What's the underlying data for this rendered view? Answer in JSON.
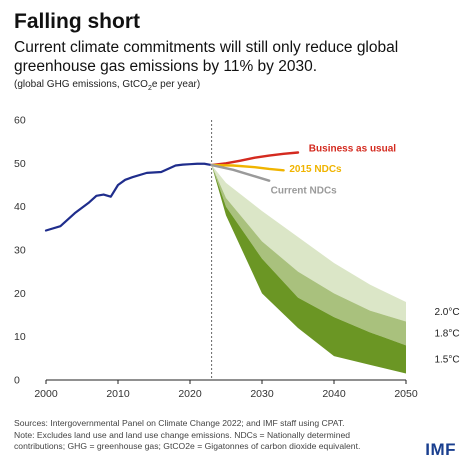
{
  "header": {
    "title": "Falling short",
    "subtitle": "Current climate commitments will still only reduce global greenhouse gas emissions by 11% by 2030.",
    "units_main": "(global GHG emissions, GtCO",
    "units_sub": "2",
    "units_tail": "e per year)"
  },
  "footer": {
    "line1": "Sources: Intergovernmental Panel on Climate Change 2022; and IMF staff using CPAT.",
    "line2": "Note: Excludes land use and land use change emissions. NDCs = Nationally determined",
    "line3": "contributions; GHG = greenhouse gas; GtCO2e = Gigatonnes of carbon dioxide equivalent."
  },
  "brand": "IMF",
  "colors": {
    "historical": "#1f2d8c",
    "business_as_usual": "#d42a1f",
    "ndc_2015": "#f0b400",
    "current_ndcs": "#9a9a9a",
    "band_2_0": "#dbe6c7",
    "band_1_8": "#a9c17d",
    "band_1_5": "#6b9624",
    "divider": "#666666"
  },
  "chart_data": {
    "type": "area",
    "xlim": [
      2000,
      2050
    ],
    "ylim": [
      0,
      60
    ],
    "x_ticks": [
      2000,
      2010,
      2020,
      2030,
      2040,
      2050
    ],
    "y_ticks": [
      0,
      10,
      20,
      30,
      40,
      50,
      60
    ],
    "grid": false,
    "divider_x": 2023,
    "series": [
      {
        "key": "historical",
        "x": [
          2000,
          2002,
          2004,
          2006,
          2007,
          2008,
          2009,
          2010,
          2011,
          2012,
          2014,
          2016,
          2018,
          2019,
          2020,
          2021,
          2022,
          2023
        ],
        "values": [
          34.5,
          35.5,
          38.5,
          41.0,
          42.5,
          42.8,
          42.3,
          45.0,
          46.2,
          46.8,
          47.8,
          48.0,
          49.5,
          49.7,
          49.8,
          49.9,
          49.9,
          49.6
        ]
      },
      {
        "key": "business_as_usual",
        "name": "Business as usual",
        "x": [
          2023,
          2025,
          2027,
          2029,
          2031,
          2033,
          2035
        ],
        "values": [
          49.6,
          50.0,
          50.6,
          51.3,
          51.8,
          52.2,
          52.5
        ]
      },
      {
        "key": "ndc_2015",
        "name": "2015 NDCs",
        "x": [
          2023,
          2026,
          2029,
          2031,
          2033
        ],
        "values": [
          49.6,
          49.5,
          49.1,
          48.7,
          48.4
        ]
      },
      {
        "key": "current_ndcs",
        "name": "Current NDCs",
        "x": [
          2023,
          2026,
          2029,
          2031
        ],
        "values": [
          49.6,
          48.5,
          47.0,
          46.0
        ]
      }
    ],
    "bands": [
      {
        "key": "band_2_0",
        "name": "2.0°C",
        "x": [
          2020,
          2023,
          2025,
          2030,
          2035,
          2040,
          2045,
          2050
        ],
        "upper": [
          49.8,
          49.6,
          45.5,
          39.0,
          33.0,
          27.0,
          22.0,
          18.0
        ],
        "lower": [
          49.8,
          49.6,
          42.0,
          32.0,
          25.0,
          20.0,
          16.0,
          13.5
        ]
      },
      {
        "key": "band_1_8",
        "name": "1.8°C",
        "x": [
          2020,
          2023,
          2025,
          2030,
          2035,
          2040,
          2045,
          2050
        ],
        "upper": [
          49.8,
          49.6,
          42.0,
          32.0,
          25.0,
          20.0,
          16.0,
          13.5
        ],
        "lower": [
          49.8,
          49.6,
          40.0,
          28.0,
          19.0,
          14.5,
          11.0,
          8.0
        ]
      },
      {
        "key": "band_1_5",
        "name": "1.5°C",
        "x": [
          2020,
          2023,
          2025,
          2030,
          2035,
          2040,
          2045,
          2050
        ],
        "upper": [
          49.8,
          49.6,
          40.0,
          28.0,
          19.0,
          14.5,
          11.0,
          8.0
        ],
        "lower": [
          49.8,
          49.6,
          38.0,
          20.0,
          12.0,
          5.5,
          3.5,
          1.5
        ]
      }
    ]
  }
}
